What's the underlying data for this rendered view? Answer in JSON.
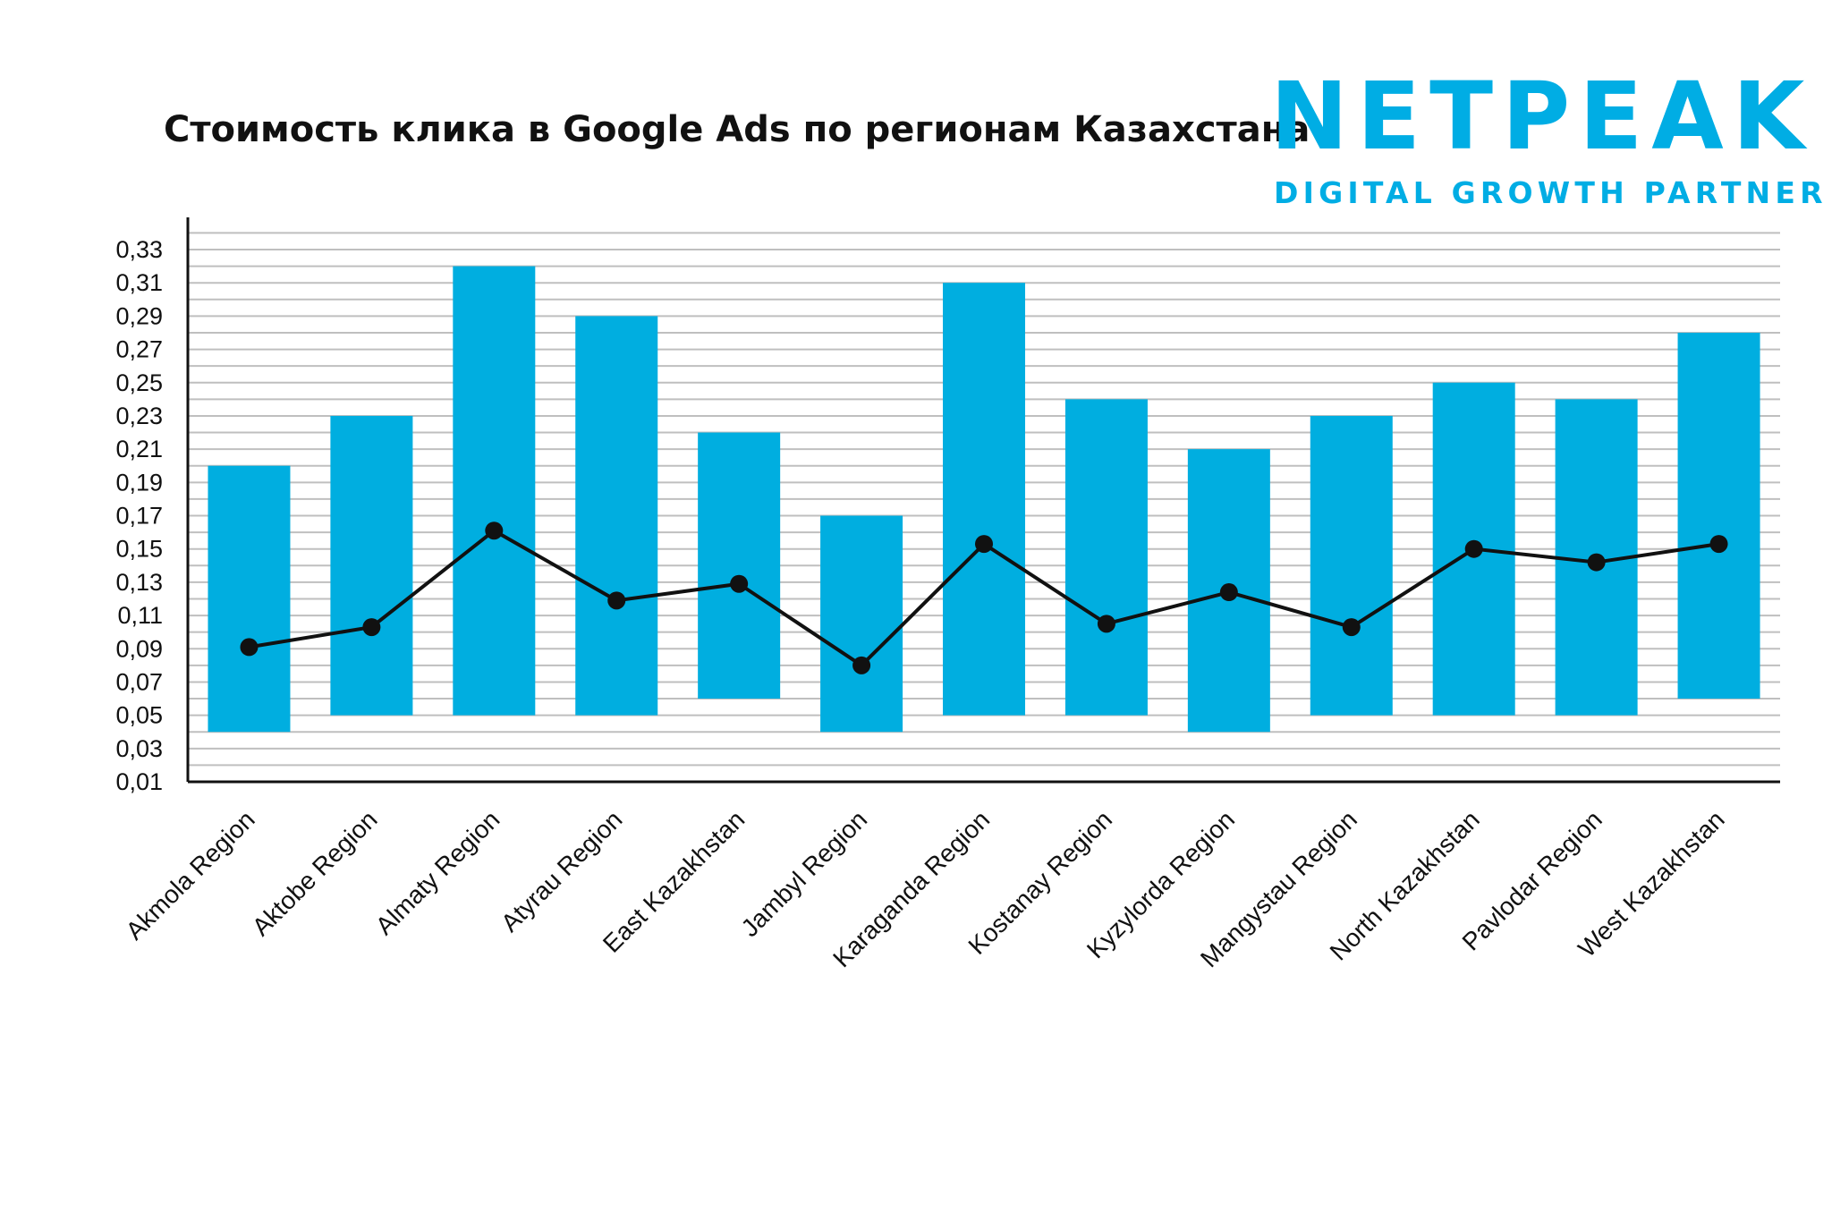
{
  "header": {
    "title": "Стоимость клика в Google Ads по регионам Казахстана"
  },
  "logo": {
    "wordmark": "NETPEAK",
    "tagline": "DIGITAL GROWTH PARTNER",
    "color": "#00ADE4"
  },
  "chart_data": {
    "type": "bar",
    "subtype": "floating-range-bar-with-line",
    "title": "Стоимость клика в Google Ads по регионам Казахстана",
    "xlabel": "",
    "ylabel": "",
    "ylim": [
      0.01,
      0.34
    ],
    "yticks": [
      "0,01",
      "0,03",
      "0,05",
      "0,07",
      "0,09",
      "0,11",
      "0,13",
      "0,15",
      "0,17",
      "0,19",
      "0,21",
      "0,23",
      "0,25",
      "0,27",
      "0,29",
      "0,31",
      "0,33"
    ],
    "grid": true,
    "legend": "none",
    "categories": [
      "Akmola Region",
      "Aktobe Region",
      "Almaty Region",
      "Atyrau Region",
      "East Kazakhstan",
      "Jambyl Region",
      "Karaganda Region",
      "Kostanay Region",
      "Kyzylorda Region",
      "Mangystau Region",
      "North Kazakhstan",
      "Pavlodar Region",
      "West Kazakhstan"
    ],
    "bar_color": "#00AEE0",
    "line_color": "#111111",
    "series": [
      {
        "type": "range-bar",
        "low": [
          0.04,
          0.05,
          0.05,
          0.05,
          0.06,
          0.04,
          0.05,
          0.05,
          0.04,
          0.05,
          0.05,
          0.05,
          0.06
        ],
        "high": [
          0.2,
          0.23,
          0.32,
          0.29,
          0.22,
          0.17,
          0.31,
          0.24,
          0.21,
          0.23,
          0.25,
          0.24,
          0.28
        ]
      },
      {
        "type": "line",
        "values": [
          0.091,
          0.103,
          0.161,
          0.119,
          0.129,
          0.08,
          0.153,
          0.105,
          0.124,
          0.103,
          0.15,
          0.142,
          0.153
        ]
      }
    ]
  }
}
